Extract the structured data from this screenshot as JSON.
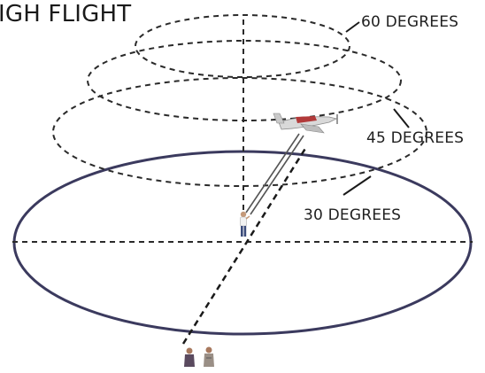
{
  "title": "IGH FLIGHT",
  "labels": {
    "deg60": "60 DEGREES",
    "deg45": "45 DEGREES",
    "deg30": "30 DEGREES"
  },
  "colors": {
    "circle_30": "#3b3a5e",
    "dashed": "#2a2a2a",
    "plane_body": "#d9d9d9",
    "plane_accent": "#b23a3a"
  },
  "icons": {
    "airplane": "airplane-icon",
    "pilot": "pilot-figure",
    "spectators": "spectator-figures"
  }
}
